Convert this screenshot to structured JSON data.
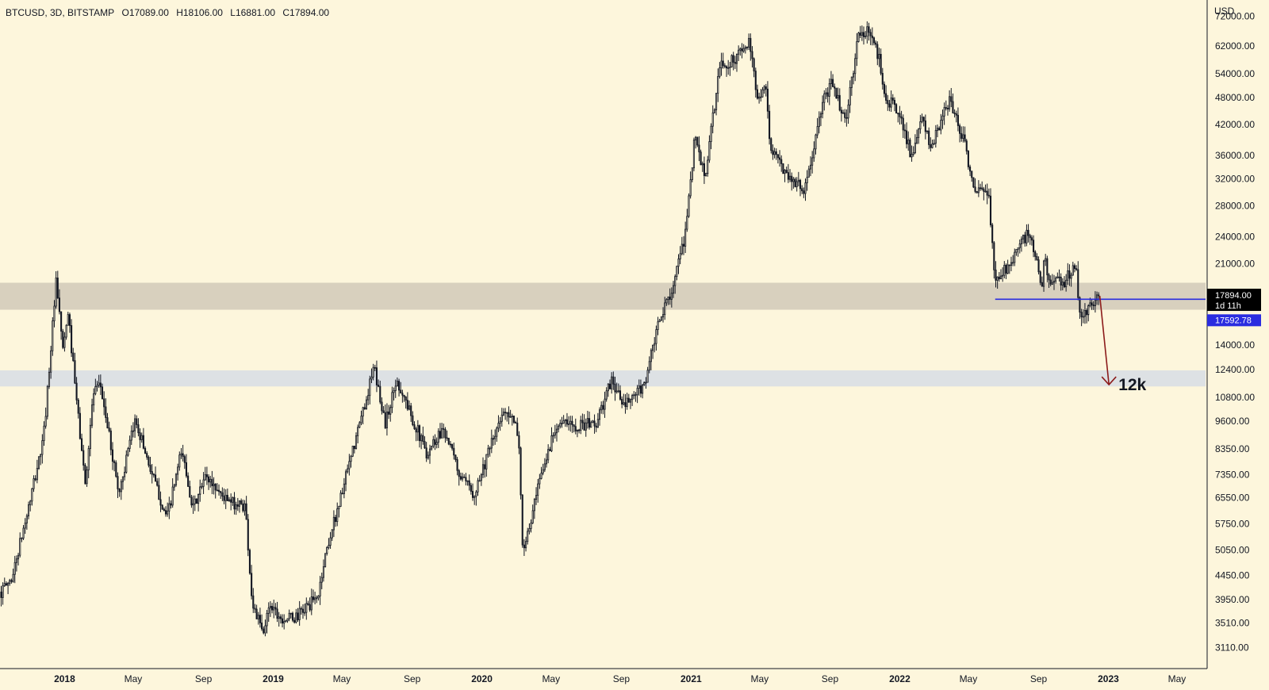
{
  "header": {
    "symbol": "BTCUSD, 3D, BITSTAMP",
    "open": "O17089.00",
    "high": "H18106.00",
    "low": "L16881.00",
    "close": "C17894.00"
  },
  "chart_data": {
    "type": "candlestick",
    "symbol": "BTCUSD",
    "interval": "3D",
    "exchange": "BITSTAMP",
    "y_scale": "log",
    "y_axis_unit": "USD",
    "ylim": [
      2800,
      78000
    ],
    "xlim": [
      "2017-09-10",
      "2023-06-20"
    ],
    "y_ticks": [
      72000,
      62000,
      54000,
      48000,
      42000,
      36000,
      32000,
      28000,
      24000,
      21000,
      14000,
      12400,
      10800,
      9600,
      8350,
      7350,
      6550,
      5750,
      5050,
      4450,
      3950,
      3510,
      3110
    ],
    "y_tick_labels": [
      "72000.00",
      "62000.00",
      "54000.00",
      "48000.00",
      "42000.00",
      "36000.00",
      "32000.00",
      "28000.00",
      "24000.00",
      "21000.00",
      "14000.00",
      "12400.00",
      "10800.00",
      "9600.00",
      "8350.00",
      "7350.00",
      "6550.00",
      "5750.00",
      "5050.00",
      "4450.00",
      "3950.00",
      "3510.00",
      "3110.00"
    ],
    "x_ticks": [
      {
        "date": "2018-01-01",
        "label": "2018",
        "bold": true
      },
      {
        "date": "2018-05-01",
        "label": "May",
        "bold": false
      },
      {
        "date": "2018-09-01",
        "label": "Sep",
        "bold": false
      },
      {
        "date": "2019-01-01",
        "label": "2019",
        "bold": true
      },
      {
        "date": "2019-05-01",
        "label": "May",
        "bold": false
      },
      {
        "date": "2019-09-01",
        "label": "Sep",
        "bold": false
      },
      {
        "date": "2020-01-01",
        "label": "2020",
        "bold": true
      },
      {
        "date": "2020-05-01",
        "label": "May",
        "bold": false
      },
      {
        "date": "2020-09-01",
        "label": "Sep",
        "bold": false
      },
      {
        "date": "2021-01-01",
        "label": "2021",
        "bold": true
      },
      {
        "date": "2021-05-01",
        "label": "May",
        "bold": false
      },
      {
        "date": "2021-09-01",
        "label": "Sep",
        "bold": false
      },
      {
        "date": "2022-01-01",
        "label": "2022",
        "bold": true
      },
      {
        "date": "2022-05-01",
        "label": "May",
        "bold": false
      },
      {
        "date": "2022-09-01",
        "label": "Sep",
        "bold": false
      },
      {
        "date": "2023-01-01",
        "label": "2023",
        "bold": true
      },
      {
        "date": "2023-05-01",
        "label": "May",
        "bold": false
      }
    ],
    "price_path": [
      [
        "2017-09-12",
        4100
      ],
      [
        "2017-10-01",
        4400
      ],
      [
        "2017-11-01",
        6400
      ],
      [
        "2017-11-25",
        8800
      ],
      [
        "2017-12-17",
        19000
      ],
      [
        "2017-12-30",
        13500
      ],
      [
        "2018-01-07",
        16500
      ],
      [
        "2018-01-20",
        11200
      ],
      [
        "2018-02-06",
        7000
      ],
      [
        "2018-02-20",
        11000
      ],
      [
        "2018-03-05",
        11400
      ],
      [
        "2018-04-06",
        6700
      ],
      [
        "2018-05-05",
        9700
      ],
      [
        "2018-06-01",
        7500
      ],
      [
        "2018-06-29",
        5900
      ],
      [
        "2018-07-25",
        8300
      ],
      [
        "2018-08-14",
        6200
      ],
      [
        "2018-09-05",
        7300
      ],
      [
        "2018-10-15",
        6400
      ],
      [
        "2018-11-13",
        6300
      ],
      [
        "2018-11-25",
        3900
      ],
      [
        "2018-12-15",
        3300
      ],
      [
        "2018-12-25",
        3900
      ],
      [
        "2019-01-15",
        3600
      ],
      [
        "2019-02-08",
        3600
      ],
      [
        "2019-03-20",
        4000
      ],
      [
        "2019-04-03",
        5000
      ],
      [
        "2019-05-15",
        7800
      ],
      [
        "2019-06-26",
        12500
      ],
      [
        "2019-07-16",
        9500
      ],
      [
        "2019-08-05",
        11800
      ],
      [
        "2019-09-26",
        8200
      ],
      [
        "2019-10-26",
        9300
      ],
      [
        "2019-11-25",
        7200
      ],
      [
        "2019-12-18",
        6700
      ],
      [
        "2020-01-20",
        8700
      ],
      [
        "2020-02-12",
        10300
      ],
      [
        "2020-03-05",
        9000
      ],
      [
        "2020-03-13",
        4900
      ],
      [
        "2020-04-10",
        7000
      ],
      [
        "2020-05-10",
        9500
      ],
      [
        "2020-06-15",
        9400
      ],
      [
        "2020-07-20",
        9500
      ],
      [
        "2020-08-15",
        11800
      ],
      [
        "2020-09-05",
        10300
      ],
      [
        "2020-10-10",
        11400
      ],
      [
        "2020-11-05",
        15500
      ],
      [
        "2020-12-01",
        19000
      ],
      [
        "2020-12-20",
        23500
      ],
      [
        "2021-01-08",
        40000
      ],
      [
        "2021-01-25",
        32000
      ],
      [
        "2021-02-20",
        56000
      ],
      [
        "2021-03-10",
        57000
      ],
      [
        "2021-04-13",
        63000
      ],
      [
        "2021-04-25",
        49000
      ],
      [
        "2021-05-12",
        50000
      ],
      [
        "2021-05-20",
        37000
      ],
      [
        "2021-06-25",
        32000
      ],
      [
        "2021-07-20",
        30500
      ],
      [
        "2021-08-20",
        47000
      ],
      [
        "2021-09-06",
        52000
      ],
      [
        "2021-09-28",
        42000
      ],
      [
        "2021-10-20",
        65000
      ],
      [
        "2021-11-10",
        67000
      ],
      [
        "2021-11-28",
        57000
      ],
      [
        "2021-12-05",
        49000
      ],
      [
        "2022-01-05",
        43000
      ],
      [
        "2022-01-23",
        35000
      ],
      [
        "2022-02-10",
        44000
      ],
      [
        "2022-02-24",
        37000
      ],
      [
        "2022-03-29",
        47500
      ],
      [
        "2022-04-26",
        38000
      ],
      [
        "2022-05-10",
        30000
      ],
      [
        "2022-06-05",
        30000
      ],
      [
        "2022-06-13",
        22000
      ],
      [
        "2022-06-18",
        19000
      ],
      [
        "2022-07-10",
        21000
      ],
      [
        "2022-08-14",
        24500
      ],
      [
        "2022-09-07",
        19000
      ],
      [
        "2022-09-12",
        22000
      ],
      [
        "2022-09-20",
        19000
      ],
      [
        "2022-10-15",
        19200
      ],
      [
        "2022-11-05",
        21000
      ],
      [
        "2022-11-10",
        16500
      ],
      [
        "2022-11-25",
        16500
      ],
      [
        "2022-12-14",
        17900
      ],
      [
        "2022-12-17",
        17894
      ]
    ],
    "current_price": {
      "value": 17894.0,
      "label": "17894.00",
      "countdown": "1d 11h"
    },
    "horizontal_line": {
      "value": 17592.78,
      "label": "17592.78",
      "color": "#2a2ce0"
    },
    "zones": [
      {
        "low": 16700,
        "high": 19100,
        "color": "#d8d0be"
      },
      {
        "low": 11400,
        "high": 12350,
        "color": "#dde1e4"
      }
    ],
    "projection": {
      "from_date": "2022-12-17",
      "from_value": 17894,
      "to_date": "2023-01-02",
      "to_value": 11500,
      "color": "#8b1a1a",
      "label": "12k"
    }
  },
  "colors": {
    "background": "#fdf6dc",
    "candle": "#131722",
    "axis_line": "#131722",
    "price_badge_bg": "#000000",
    "hline_badge_bg": "#2a2ce0"
  }
}
